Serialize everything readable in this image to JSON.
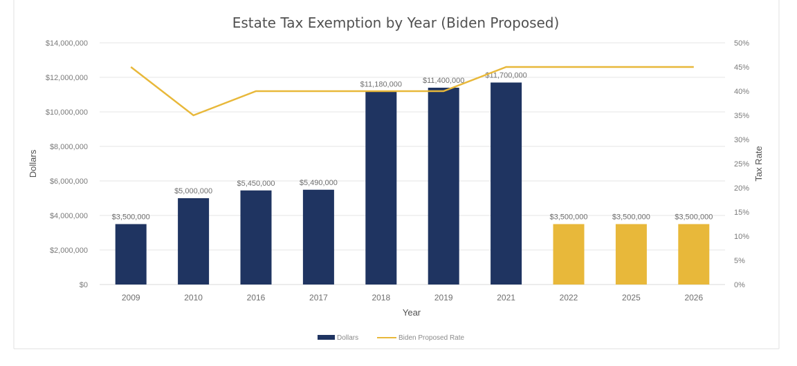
{
  "chart_data": {
    "type": "bar",
    "title": "Estate Tax Exemption by Year (Biden Proposed)",
    "xlabel": "Year",
    "ylabel": "Dollars",
    "y2label": "Tax Rate",
    "categories": [
      "2009",
      "2010",
      "2016",
      "2017",
      "2018",
      "2019",
      "2021",
      "2022",
      "2025",
      "2026"
    ],
    "series": [
      {
        "name": "Dollars",
        "type": "bar",
        "values": [
          3500000,
          5000000,
          5450000,
          5490000,
          11180000,
          11400000,
          11700000,
          3500000,
          3500000,
          3500000
        ],
        "data_labels": [
          "$3,500,000",
          "$5,000,000",
          "$5,450,000",
          "$5,490,000",
          "$11,180,000",
          "$11,400,000",
          "$11,700,000",
          "$3,500,000",
          "$3,500,000",
          "$3,500,000"
        ],
        "color": "#1f3461",
        "alt_color": "#e8b83a",
        "alt_color_from_index": 7
      },
      {
        "name": "Biden Proposed Rate",
        "type": "line",
        "axis": "right",
        "values": [
          45,
          35,
          40,
          40,
          40,
          40,
          45,
          45,
          45,
          45
        ],
        "color": "#e8b83a"
      }
    ],
    "ylim": [
      0,
      14000000
    ],
    "y_ticks": [
      0,
      2000000,
      4000000,
      6000000,
      8000000,
      10000000,
      12000000,
      14000000
    ],
    "y_tick_labels": [
      "$0",
      "$2,000,000",
      "$4,000,000",
      "$6,000,000",
      "$8,000,000",
      "$10,000,000",
      "$12,000,000",
      "$14,000,000"
    ],
    "y2lim": [
      0,
      50
    ],
    "y2_ticks": [
      0,
      5,
      10,
      15,
      20,
      25,
      30,
      35,
      40,
      45,
      50
    ],
    "y2_tick_labels": [
      "0%",
      "5%",
      "10%",
      "15%",
      "20%",
      "25%",
      "30%",
      "35%",
      "40%",
      "45%",
      "50%"
    ],
    "grid": true,
    "legend": "bottom-center"
  }
}
